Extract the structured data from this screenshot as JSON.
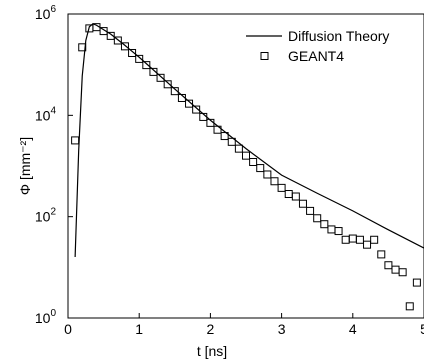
{
  "chart_data": {
    "type": "line",
    "xlabel": "t [ns]",
    "ylabel": "Φ [mm⁻²]",
    "xlim": [
      0,
      5
    ],
    "xticks": [
      0,
      1,
      2,
      3,
      4,
      5
    ],
    "yscale": "log",
    "ylim": [
      1,
      1000000
    ],
    "yticks": [
      {
        "value": 1,
        "label": "10",
        "exponent": "0"
      },
      {
        "value": 100,
        "label": "10",
        "exponent": "2"
      },
      {
        "value": 10000,
        "label": "10",
        "exponent": "4"
      },
      {
        "value": 1000000,
        "label": "10",
        "exponent": "6"
      }
    ],
    "legend": "upper right",
    "series": [
      {
        "name": "Diffusion Theory",
        "color": "#000000",
        "x": [
          0.1,
          0.15,
          0.2,
          0.25,
          0.3,
          0.35,
          0.4,
          0.6,
          0.8,
          1.0,
          1.5,
          2.0,
          2.5,
          3.0,
          3.5,
          4.0,
          4.5,
          5.0
        ],
        "values": [
          16,
          2000,
          60000,
          300000,
          560000,
          640000,
          600000,
          400000,
          240000,
          140000,
          33000,
          8000,
          2200,
          660,
          290,
          130,
          55,
          24
        ]
      },
      {
        "name": "GEANT4",
        "color": "#000000",
        "marker": "square",
        "x": [
          0.1,
          0.2,
          0.3,
          0.4,
          0.5,
          0.6,
          0.7,
          0.8,
          0.9,
          1.0,
          1.1,
          1.2,
          1.3,
          1.4,
          1.5,
          1.6,
          1.7,
          1.8,
          1.9,
          2.0,
          2.1,
          2.2,
          2.3,
          2.4,
          2.5,
          2.6,
          2.7,
          2.8,
          2.9,
          3.0,
          3.1,
          3.2,
          3.3,
          3.4,
          3.5,
          3.6,
          3.7,
          3.8,
          3.9,
          4.0,
          4.1,
          4.2,
          4.3,
          4.4,
          4.5,
          4.6,
          4.7,
          4.8,
          4.9
        ],
        "values": [
          3200,
          220000,
          520000,
          550000,
          460000,
          370000,
          300000,
          230000,
          170000,
          130000,
          98000,
          72000,
          55000,
          41000,
          30000,
          22000,
          17000,
          13000,
          9300,
          7100,
          5200,
          3900,
          3000,
          2200,
          1600,
          1200,
          910,
          680,
          500,
          370,
          280,
          250,
          180,
          130,
          93,
          71,
          56,
          52,
          35,
          37,
          35,
          28,
          35,
          18,
          11,
          9,
          8,
          1.7,
          5
        ]
      }
    ]
  }
}
